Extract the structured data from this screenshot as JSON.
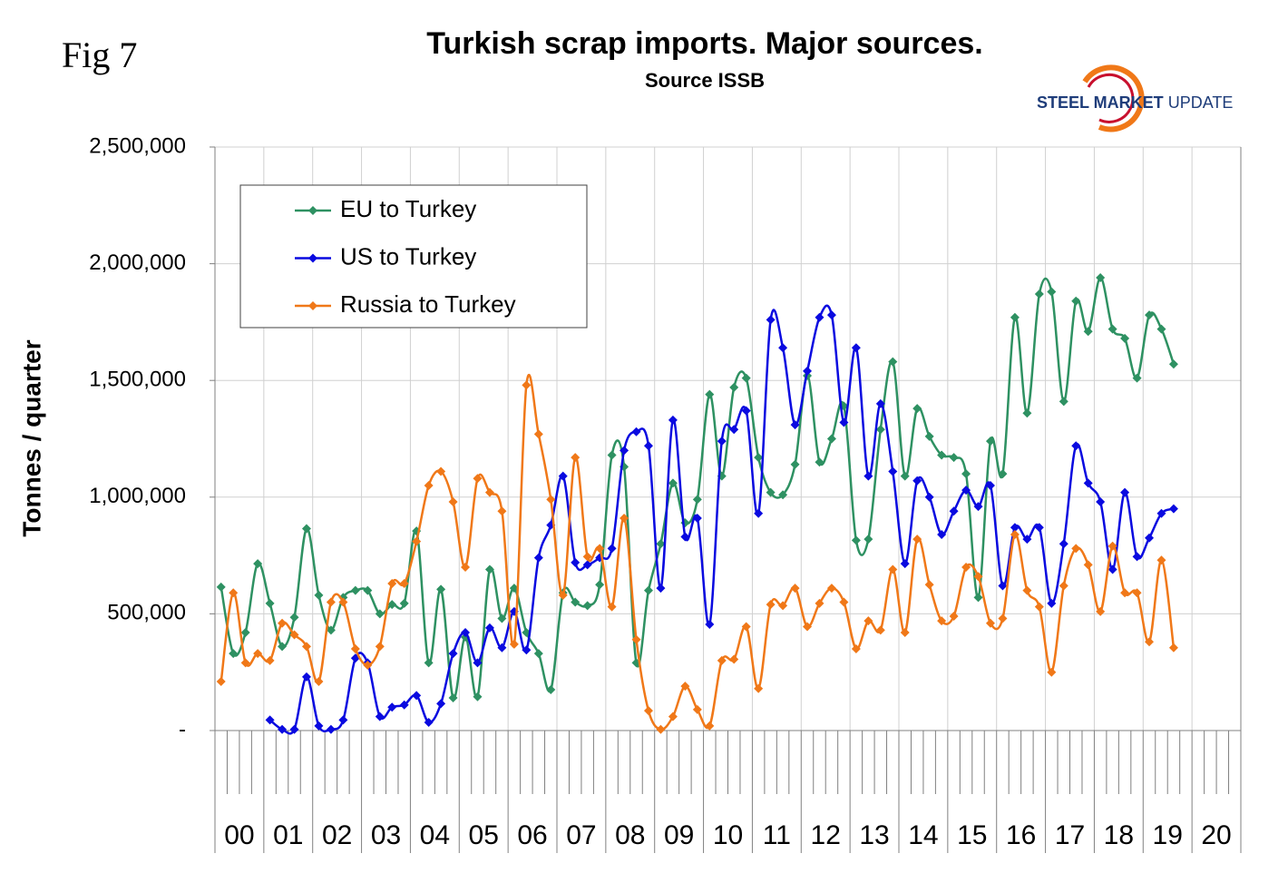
{
  "fig_label": "Fig 7",
  "logo": {
    "bold": "STEEL MARKET",
    "light": "UPDATE"
  },
  "chart_data": {
    "type": "line",
    "title": "Turkish scrap imports. Major sources.",
    "subtitle": "Source ISSB",
    "y_label": "Tonnes / quarter",
    "ylim": [
      0,
      2500000
    ],
    "yticks": [
      {
        "value": 0,
        "label": "-"
      },
      {
        "value": 500000,
        "label": "500,000"
      },
      {
        "value": 1000000,
        "label": "1,000,000"
      },
      {
        "value": 1500000,
        "label": "1,500,000"
      },
      {
        "value": 2000000,
        "label": "2,000,000"
      },
      {
        "value": 2500000,
        "label": "2,500,000"
      }
    ],
    "grid": true,
    "legend": "upper left",
    "x_groups": [
      "00",
      "01",
      "02",
      "03",
      "04",
      "05",
      "06",
      "07",
      "08",
      "09",
      "10",
      "11",
      "12",
      "13",
      "14",
      "15",
      "16",
      "17",
      "18",
      "19",
      "20"
    ],
    "categories": [
      null,
      null,
      null,
      null,
      null,
      null,
      null,
      null,
      null,
      null,
      null,
      null,
      null,
      null,
      null,
      null,
      null,
      null,
      null,
      null,
      null,
      null,
      null,
      null,
      null,
      null,
      null,
      null,
      null,
      null,
      null,
      null,
      null,
      null,
      null,
      null,
      null,
      null,
      null,
      null,
      null,
      null,
      null,
      null,
      null,
      null,
      null,
      null,
      null,
      null,
      null,
      null,
      null,
      null,
      null,
      null,
      null,
      null,
      null,
      null,
      null,
      null,
      null,
      null,
      null,
      null,
      null,
      null,
      null,
      null,
      null,
      null,
      null,
      null,
      null,
      null,
      null,
      null,
      null,
      null,
      null,
      null,
      null,
      null
    ],
    "series": [
      {
        "name": "EU to Turkey",
        "color": "#2e9162",
        "values": [
          615000,
          330000,
          420000,
          715000,
          545000,
          360000,
          485000,
          865000,
          580000,
          430000,
          570000,
          600000,
          600000,
          500000,
          540000,
          545000,
          855000,
          290000,
          605000,
          140000,
          400000,
          145000,
          690000,
          480000,
          610000,
          420000,
          330000,
          175000,
          590000,
          550000,
          535000,
          625000,
          1180000,
          1130000,
          290000,
          600000,
          800000,
          1060000,
          890000,
          990000,
          1440000,
          1090000,
          1470000,
          1510000,
          1170000,
          1020000,
          1010000,
          1140000,
          1520000,
          1150000,
          1250000,
          1390000,
          815000,
          820000,
          1290000,
          1580000,
          1090000,
          1380000,
          1260000,
          1180000,
          1170000,
          1100000,
          570000,
          1240000,
          1100000,
          1770000,
          1360000,
          1870000,
          1880000,
          1410000,
          1840000,
          1710000,
          1940000,
          1720000,
          1680000,
          1510000,
          1780000,
          1720000,
          1570000,
          null,
          null,
          null,
          null,
          null
        ]
      },
      {
        "name": "US to Turkey",
        "color": "#0a0ae0",
        "values": [
          null,
          null,
          null,
          null,
          45000,
          5000,
          5000,
          230000,
          20000,
          5000,
          45000,
          310000,
          290000,
          60000,
          100000,
          110000,
          150000,
          35000,
          115000,
          330000,
          420000,
          290000,
          440000,
          355000,
          510000,
          345000,
          740000,
          880000,
          1090000,
          720000,
          710000,
          740000,
          780000,
          1200000,
          1280000,
          1220000,
          610000,
          1330000,
          830000,
          910000,
          455000,
          1240000,
          1290000,
          1370000,
          930000,
          1760000,
          1640000,
          1310000,
          1540000,
          1770000,
          1780000,
          1320000,
          1640000,
          1090000,
          1400000,
          1110000,
          715000,
          1070000,
          1000000,
          840000,
          940000,
          1030000,
          960000,
          1050000,
          620000,
          870000,
          820000,
          870000,
          545000,
          800000,
          1220000,
          1060000,
          980000,
          690000,
          1020000,
          745000,
          825000,
          930000,
          950000,
          null,
          null,
          null,
          null,
          null
        ]
      },
      {
        "name": "Russia to Turkey",
        "color": "#f07818",
        "values": [
          210000,
          590000,
          290000,
          330000,
          300000,
          460000,
          410000,
          360000,
          210000,
          550000,
          550000,
          350000,
          280000,
          360000,
          630000,
          630000,
          810000,
          1050000,
          1110000,
          980000,
          700000,
          1080000,
          1020000,
          940000,
          370000,
          1480000,
          1270000,
          990000,
          580000,
          1170000,
          745000,
          780000,
          530000,
          910000,
          390000,
          85000,
          5000,
          60000,
          190000,
          90000,
          20000,
          300000,
          305000,
          445000,
          180000,
          540000,
          535000,
          610000,
          445000,
          545000,
          610000,
          550000,
          350000,
          470000,
          430000,
          690000,
          420000,
          820000,
          625000,
          470000,
          490000,
          700000,
          660000,
          460000,
          480000,
          840000,
          600000,
          530000,
          250000,
          620000,
          780000,
          710000,
          510000,
          790000,
          590000,
          590000,
          380000,
          730000,
          355000,
          null,
          null,
          null,
          null,
          null
        ]
      }
    ]
  }
}
